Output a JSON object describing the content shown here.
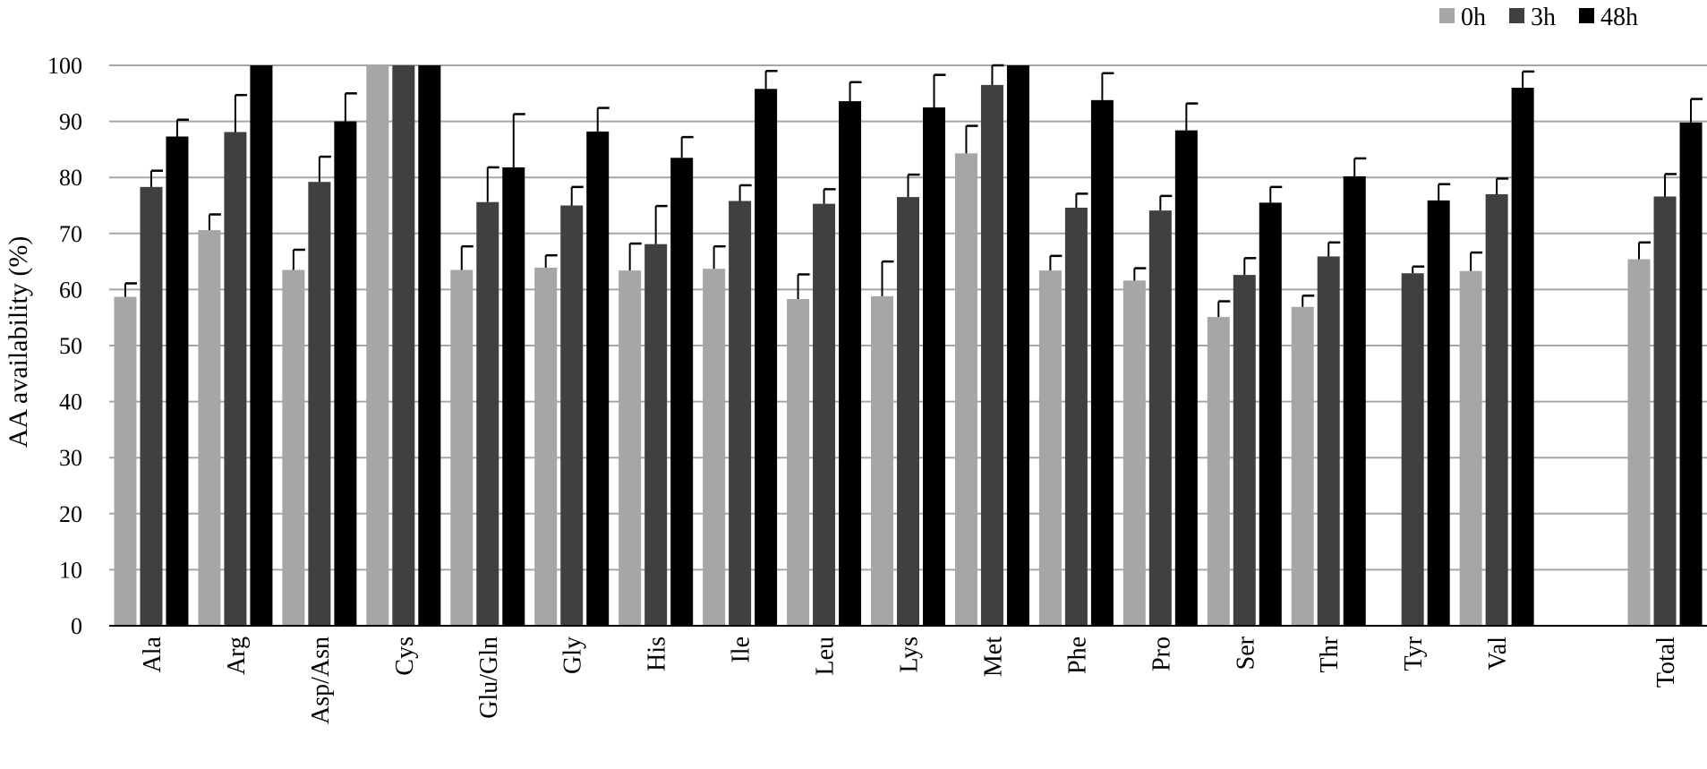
{
  "chart_data": {
    "type": "bar",
    "title": "",
    "xlabel": "",
    "ylabel": "AA availability (%)",
    "ylim": [
      0,
      100
    ],
    "yticks": [
      0,
      10,
      20,
      30,
      40,
      50,
      60,
      70,
      80,
      90,
      100
    ],
    "grid": "horizontal",
    "legend_position": "top-right",
    "categories": [
      "Ala",
      "Arg",
      "Asp/Asn",
      "Cys",
      "Glu/Gln",
      "Gly",
      "His",
      "Ile",
      "Leu",
      "Lys",
      "Met",
      "Phe",
      "Pro",
      "Ser",
      "Thr",
      "Tyr",
      "Val",
      "",
      "Total"
    ],
    "series": [
      {
        "name": "0h",
        "color": "#a6a6a6",
        "values": [
          58.7,
          70.6,
          63.5,
          100,
          63.5,
          63.9,
          63.4,
          63.7,
          58.3,
          58.8,
          84.3,
          63.4,
          61.6,
          55.1,
          56.9,
          null,
          63.3,
          null,
          65.4
        ],
        "errors": [
          2.4,
          2.8,
          3.6,
          0,
          4.2,
          2.2,
          4.8,
          4.0,
          4.4,
          6.2,
          4.9,
          2.6,
          2.2,
          2.8,
          2.0,
          null,
          3.3,
          null,
          3.0
        ]
      },
      {
        "name": "3h",
        "color": "#404040",
        "values": [
          78.3,
          88.1,
          79.2,
          100,
          75.6,
          75.0,
          68.1,
          75.8,
          75.3,
          76.5,
          96.5,
          74.6,
          74.1,
          62.6,
          65.9,
          62.9,
          77.0,
          null,
          76.6
        ],
        "errors": [
          2.9,
          6.6,
          4.5,
          0,
          6.2,
          3.3,
          6.8,
          2.8,
          2.6,
          4.0,
          3.5,
          2.5,
          2.6,
          3.0,
          2.5,
          1.2,
          2.8,
          null,
          4.0
        ]
      },
      {
        "name": "48h",
        "color": "#000000",
        "values": [
          87.3,
          100,
          90.0,
          100,
          81.8,
          88.2,
          83.5,
          95.8,
          93.6,
          92.5,
          100,
          93.8,
          88.4,
          75.5,
          80.2,
          75.9,
          96.0,
          null,
          89.8
        ],
        "errors": [
          3.0,
          0,
          5.0,
          0,
          9.5,
          4.2,
          3.7,
          3.2,
          3.4,
          5.8,
          0,
          4.8,
          4.8,
          2.8,
          3.2,
          2.9,
          2.9,
          null,
          4.2
        ]
      }
    ]
  }
}
